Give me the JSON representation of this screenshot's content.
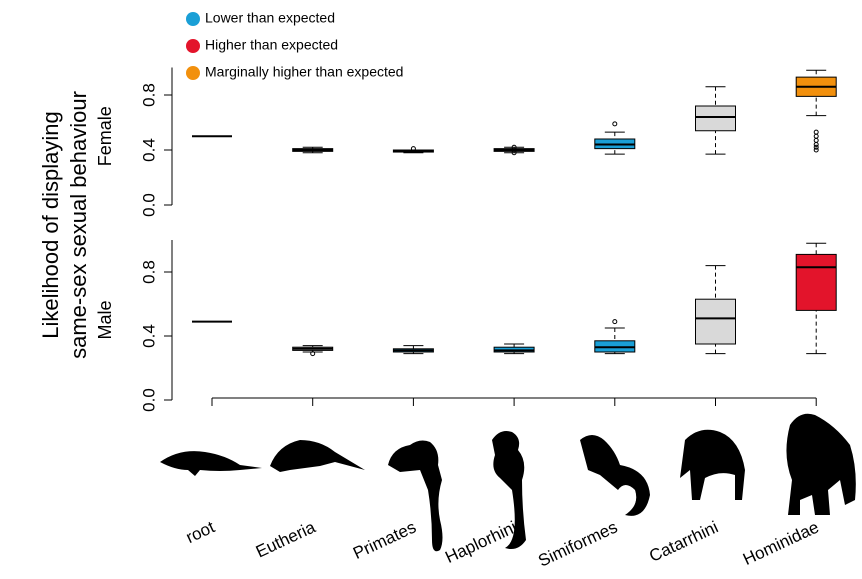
{
  "chart_data": {
    "type": "box",
    "ylabel": [
      "Likelihood of displaying",
      "same-sex sexual behaviour"
    ],
    "categories": [
      "root",
      "Eutheria",
      "Primates",
      "Haplorhini",
      "Simiformes",
      "Catarrhini",
      "Hominidae"
    ],
    "legend": [
      {
        "name": "Lower than expected",
        "color": "#1a9fd6"
      },
      {
        "name": "Higher than expected",
        "color": "#e3142b"
      },
      {
        "name": "Marginally higher than expected",
        "color": "#f2900d"
      }
    ],
    "panels": [
      {
        "name": "Female",
        "ylim": [
          0,
          1
        ],
        "yticks": [
          {
            "value": 0,
            "label": "0.0"
          },
          0.4,
          0.8
        ],
        "colors": [
          "#ffffff",
          "#d9d9d9",
          "#d9d9d9",
          "#d9d9d9",
          "#1a9fd6",
          "#d9d9d9",
          "#f2900d"
        ],
        "boxes": [
          {
            "median": 0.5
          },
          {
            "min": 0.38,
            "q1": 0.39,
            "median": 0.4,
            "q3": 0.41,
            "max": 0.42
          },
          {
            "min": 0.38,
            "q1": 0.385,
            "median": 0.39,
            "q3": 0.4,
            "max": 0.4,
            "outliers": [
              0.41
            ]
          },
          {
            "min": 0.38,
            "q1": 0.39,
            "median": 0.4,
            "q3": 0.41,
            "max": 0.42,
            "outliers": [
              0.42,
              0.38
            ]
          },
          {
            "min": 0.37,
            "q1": 0.41,
            "median": 0.44,
            "q3": 0.48,
            "max": 0.53,
            "outliers": [
              0.59
            ]
          },
          {
            "min": 0.37,
            "q1": 0.54,
            "median": 0.64,
            "q3": 0.72,
            "max": 0.86
          },
          {
            "min": 0.65,
            "q1": 0.79,
            "median": 0.86,
            "q3": 0.93,
            "max": 0.98,
            "outliers": [
              0.53,
              0.5,
              0.47,
              0.44,
              0.42,
              0.4
            ]
          }
        ]
      },
      {
        "name": "Male",
        "ylim": [
          0,
          1
        ],
        "yticks": [
          {
            "value": 0,
            "label": "0.0"
          },
          0.4,
          0.8
        ],
        "colors": [
          "#ffffff",
          "#d9d9d9",
          "#1a9fd6",
          "#1a9fd6",
          "#1a9fd6",
          "#d9d9d9",
          "#e3142b"
        ],
        "boxes": [
          {
            "median": 0.49
          },
          {
            "min": 0.3,
            "q1": 0.31,
            "median": 0.32,
            "q3": 0.33,
            "max": 0.34,
            "outliers": [
              0.29
            ]
          },
          {
            "min": 0.29,
            "q1": 0.3,
            "median": 0.31,
            "q3": 0.32,
            "max": 0.34
          },
          {
            "min": 0.29,
            "q1": 0.3,
            "median": 0.31,
            "q3": 0.33,
            "max": 0.35
          },
          {
            "min": 0.29,
            "q1": 0.3,
            "median": 0.33,
            "q3": 0.37,
            "max": 0.45,
            "outliers": [
              0.49
            ]
          },
          {
            "min": 0.29,
            "q1": 0.35,
            "median": 0.51,
            "q3": 0.63,
            "max": 0.84
          },
          {
            "min": 0.29,
            "q1": 0.56,
            "median": 0.83,
            "q3": 0.91,
            "max": 0.98
          }
        ]
      }
    ]
  }
}
